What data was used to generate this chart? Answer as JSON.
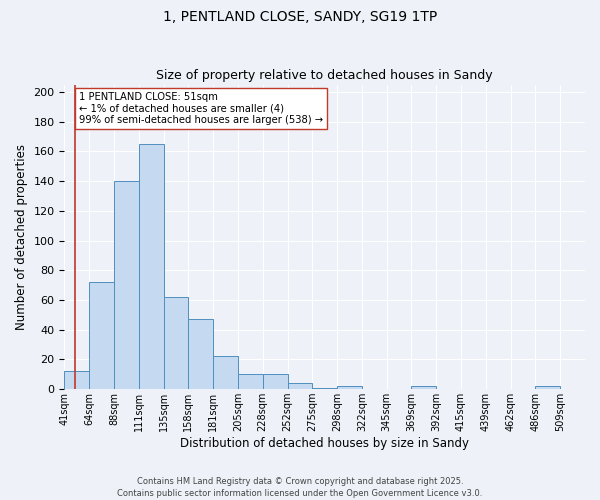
{
  "title1": "1, PENTLAND CLOSE, SANDY, SG19 1TP",
  "title2": "Size of property relative to detached houses in Sandy",
  "xlabel": "Distribution of detached houses by size in Sandy",
  "ylabel": "Number of detached properties",
  "bin_labels": [
    "41sqm",
    "64sqm",
    "88sqm",
    "111sqm",
    "135sqm",
    "158sqm",
    "181sqm",
    "205sqm",
    "228sqm",
    "252sqm",
    "275sqm",
    "298sqm",
    "322sqm",
    "345sqm",
    "369sqm",
    "392sqm",
    "415sqm",
    "439sqm",
    "462sqm",
    "486sqm",
    "509sqm"
  ],
  "bar_values": [
    12,
    72,
    140,
    165,
    62,
    47,
    22,
    10,
    10,
    4,
    1,
    2,
    0,
    0,
    2,
    0,
    0,
    0,
    0,
    2,
    0
  ],
  "bar_color": "#c5d9f0",
  "bar_edge_color": "#4f8fc0",
  "subject_line_color": "#c0392b",
  "ylim": [
    0,
    205
  ],
  "yticks": [
    0,
    20,
    40,
    60,
    80,
    100,
    120,
    140,
    160,
    180,
    200
  ],
  "annotation_text": "1 PENTLAND CLOSE: 51sqm\n← 1% of detached houses are smaller (4)\n99% of semi-detached houses are larger (538) →",
  "footnote1": "Contains HM Land Registry data © Crown copyright and database right 2025.",
  "footnote2": "Contains public sector information licensed under the Open Government Licence v3.0.",
  "background_color": "#eef2f8",
  "plot_bg_color": "#eef2f8",
  "fig_width": 6.0,
  "fig_height": 5.0
}
